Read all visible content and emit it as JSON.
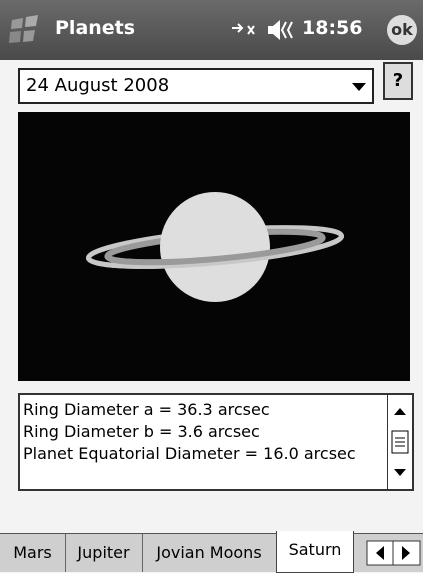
{
  "statusbar": {
    "title": "Planets",
    "time": "18:56",
    "ok": "ok"
  },
  "date": "24 August 2008",
  "help": "?",
  "info": [
    "Ring Diameter a =  36.3 arcsec",
    "Ring Diameter b =   3.6 arcsec",
    "Planet Equatorial Diameter =  16.0 arcsec"
  ],
  "tabs": [
    "Mars",
    "Jupiter",
    "Jovian Moons",
    "Saturn"
  ]
}
